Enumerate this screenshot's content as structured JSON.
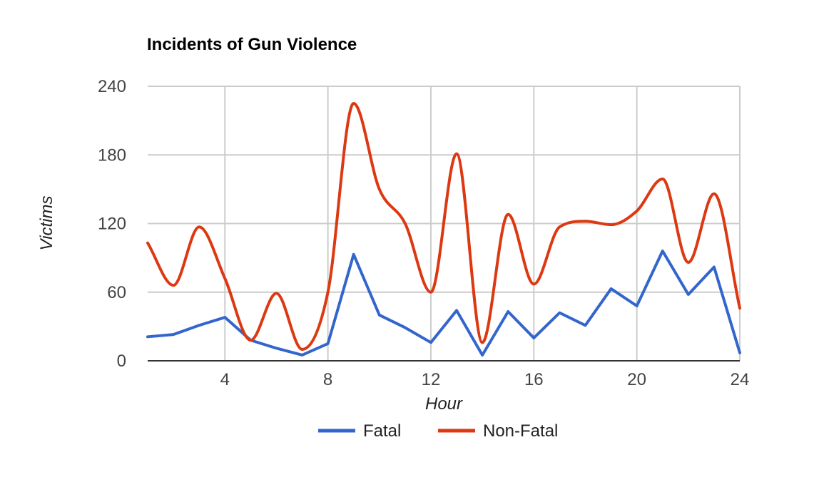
{
  "chart_data": {
    "type": "line",
    "title": "Incidents of Gun Violence",
    "xlabel": "Hour",
    "ylabel": "Victims",
    "xlim": [
      1,
      24
    ],
    "ylim": [
      0,
      240
    ],
    "x_ticks": [
      4,
      8,
      12,
      16,
      20,
      24
    ],
    "y_ticks": [
      0,
      60,
      120,
      180,
      240
    ],
    "x_tick_labels": [
      "4",
      "8",
      "12",
      "16",
      "20",
      "24"
    ],
    "y_tick_labels": [
      "0",
      "60",
      "120",
      "180",
      "240"
    ],
    "grid": true,
    "legend_position": "bottom",
    "x": [
      1,
      2,
      3,
      4,
      5,
      6,
      7,
      8,
      9,
      10,
      11,
      12,
      13,
      14,
      15,
      16,
      17,
      18,
      19,
      20,
      21,
      22,
      23,
      24
    ],
    "series": [
      {
        "name": "Fatal",
        "color": "#3366cc",
        "smooth": false,
        "values": [
          21,
          23,
          31,
          38,
          18,
          11,
          5,
          15,
          93,
          40,
          29,
          16,
          44,
          5,
          43,
          20,
          42,
          31,
          63,
          48,
          96,
          58,
          82,
          7
        ]
      },
      {
        "name": "Non-Fatal",
        "color": "#dc3912",
        "smooth": true,
        "values": [
          103,
          66,
          117,
          72,
          18,
          59,
          10,
          60,
          225,
          150,
          120,
          60,
          181,
          16,
          128,
          67,
          117,
          122,
          119,
          131,
          159,
          86,
          146,
          46
        ]
      }
    ]
  }
}
